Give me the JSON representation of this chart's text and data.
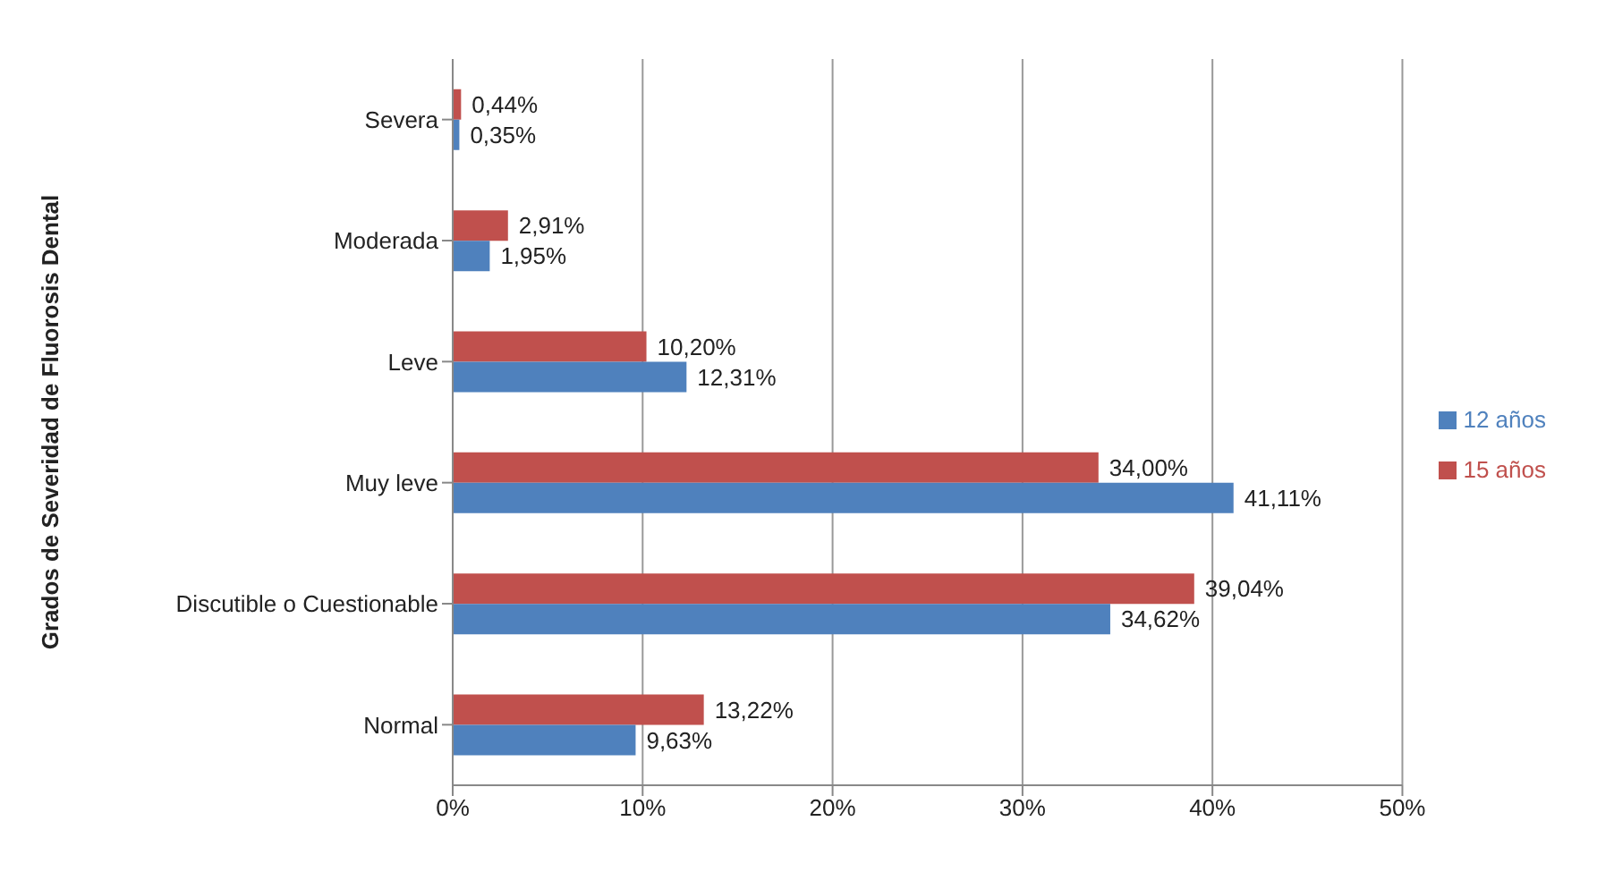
{
  "chart_data": {
    "type": "bar",
    "orientation": "horizontal",
    "ylabel": "Grados de Severidad de Fluorosis Dental",
    "categories": [
      "Severa",
      "Moderada",
      "Leve",
      "Muy leve",
      "Discutible o Cuestionable",
      "Normal"
    ],
    "series": [
      {
        "name": "15 años",
        "color": "#c0504d",
        "values": [
          0.44,
          2.91,
          10.2,
          34.0,
          39.04,
          13.22
        ],
        "value_labels": [
          "0,44%",
          "2,91%",
          "10,20%",
          "34,00%",
          "39,04%",
          "13,22%"
        ]
      },
      {
        "name": "12 años",
        "color": "#4f81bd",
        "values": [
          0.35,
          1.95,
          12.31,
          41.11,
          34.62,
          9.63
        ],
        "value_labels": [
          "0,35%",
          "1,95%",
          "12,31%",
          "41,11%",
          "34,62%",
          "9,63%"
        ]
      }
    ],
    "xlim": [
      0,
      50
    ],
    "xticks": [
      {
        "value": 0,
        "label": "0%"
      },
      {
        "value": 10,
        "label": "10%"
      },
      {
        "value": 20,
        "label": "20%"
      },
      {
        "value": 30,
        "label": "30%"
      },
      {
        "value": 40,
        "label": "40%"
      },
      {
        "value": 50,
        "label": "50%"
      }
    ],
    "grid": "x",
    "legend": "right"
  }
}
